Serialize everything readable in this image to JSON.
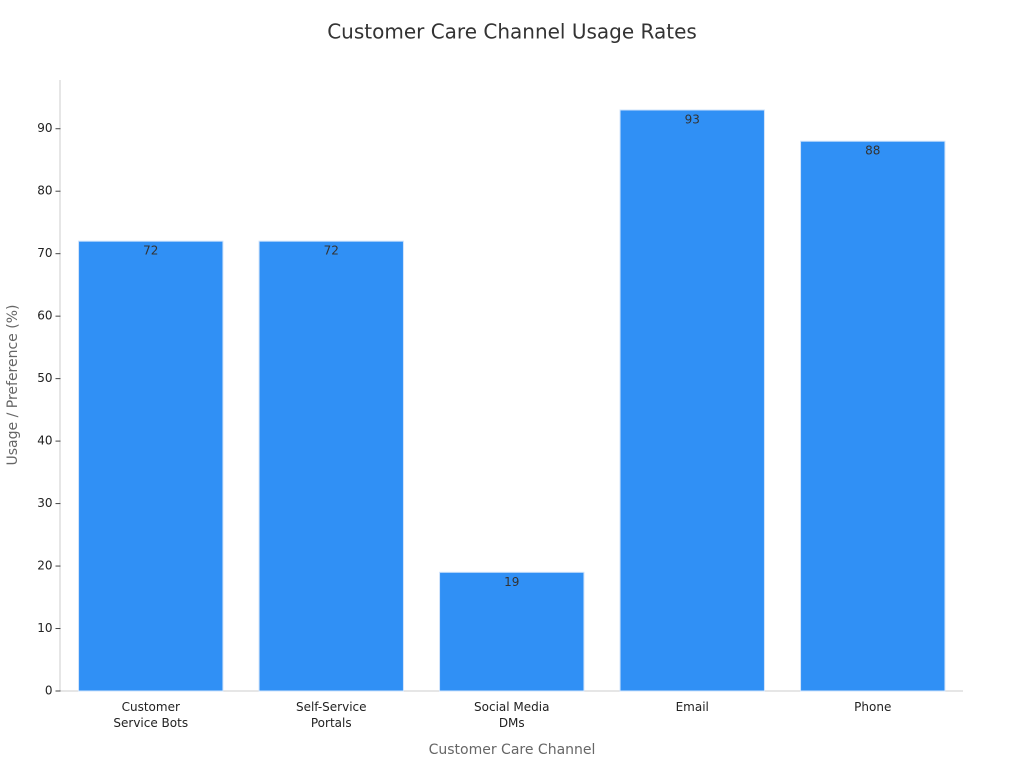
{
  "chart_data": {
    "type": "bar",
    "title": "Customer Care Channel Usage Rates",
    "x_label": "Customer Care Channel",
    "y_label": "Usage / Preference (%)",
    "categories": [
      "Customer\nService Bots",
      "Self-Service\nPortals",
      "Social Media\nDMs",
      "Email",
      "Phone"
    ],
    "values": [
      72,
      72,
      19,
      93,
      88
    ],
    "color": "#3090f5",
    "ylim": [
      0,
      97.8
    ],
    "yticks": [
      0,
      10,
      20,
      30,
      40,
      50,
      60,
      70,
      80,
      90
    ],
    "grid": false
  }
}
